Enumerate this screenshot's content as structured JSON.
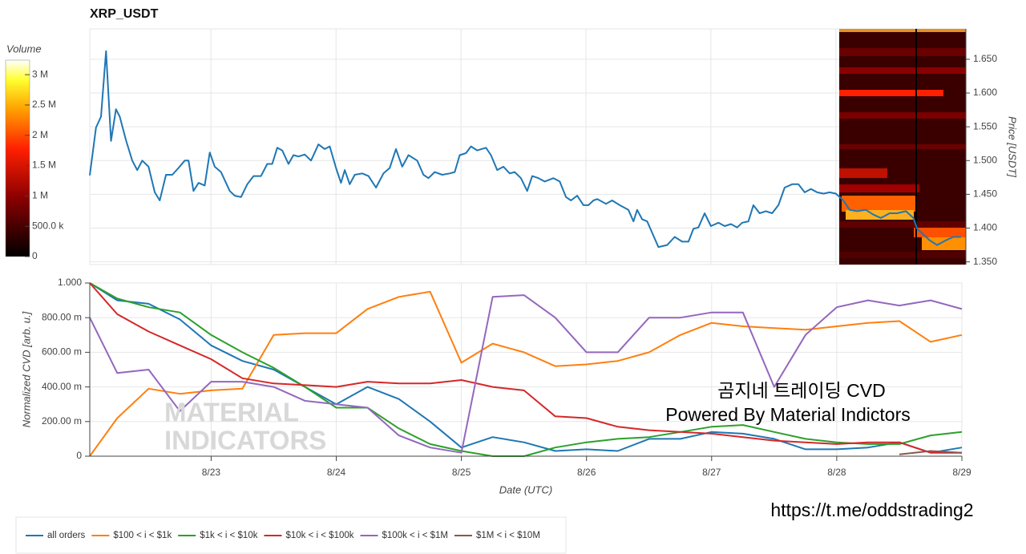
{
  "chart_data": [
    {
      "type": "line",
      "title": "XRP_USDT",
      "y2_label": "Price [USDT]",
      "color": "#1f77b4",
      "xlim": [
        22.03,
        29.04
      ],
      "y2lim": [
        1.346,
        1.695
      ],
      "y2ticks": [
        {
          "value": 1.35,
          "label": "1.350"
        },
        {
          "value": 1.4,
          "label": "1.400"
        },
        {
          "value": 1.45,
          "label": "1.450"
        },
        {
          "value": 1.5,
          "label": "1.500"
        },
        {
          "value": 1.55,
          "label": "1.550"
        },
        {
          "value": 1.6,
          "label": "1.600"
        },
        {
          "value": 1.65,
          "label": "1.650"
        }
      ],
      "grid": true,
      "colorbar": {
        "label": "Volume",
        "lim": [
          0,
          3240000
        ],
        "ticks": [
          0,
          {
            "value": 500000,
            "label": "500.0 k"
          },
          {
            "value": 1000000,
            "label": "1 M"
          },
          {
            "value": 1500000,
            "label": "1.5 M"
          },
          {
            "value": 2000000,
            "label": "2 M"
          },
          {
            "value": 2500000,
            "label": "2.5 M"
          },
          {
            "value": 3000000,
            "label": "3 M"
          }
        ]
      },
      "x": [
        22.03,
        22.08,
        22.12,
        22.16,
        22.2,
        22.24,
        22.27,
        22.32,
        22.37,
        22.41,
        22.45,
        22.5,
        22.55,
        22.59,
        22.64,
        22.69,
        22.74,
        22.79,
        22.82,
        22.86,
        22.9,
        22.95,
        22.99,
        23.03,
        23.08,
        23.15,
        23.19,
        23.24,
        23.29,
        23.34,
        23.4,
        23.45,
        23.49,
        23.53,
        23.57,
        23.62,
        23.66,
        23.7,
        23.75,
        23.8,
        23.86,
        23.91,
        23.95,
        24.0,
        24.04,
        24.07,
        24.11,
        24.15,
        24.21,
        24.26,
        24.32,
        24.38,
        24.43,
        24.48,
        24.53,
        24.58,
        24.65,
        24.7,
        24.74,
        24.79,
        24.85,
        24.91,
        24.95,
        24.99,
        25.04,
        25.08,
        25.13,
        25.2,
        25.24,
        25.29,
        25.34,
        25.39,
        25.43,
        25.48,
        25.53,
        25.57,
        25.62,
        25.67,
        25.74,
        25.79,
        25.84,
        25.88,
        25.93,
        25.98,
        26.02,
        26.06,
        26.09,
        26.16,
        26.21,
        26.27,
        26.34,
        26.38,
        26.41,
        26.45,
        26.49,
        26.58,
        26.65,
        26.71,
        26.77,
        26.82,
        26.86,
        26.9,
        26.95,
        27.0,
        27.06,
        27.11,
        27.16,
        27.21,
        27.25,
        27.3,
        27.34,
        27.39,
        27.44,
        27.49,
        27.54,
        27.59,
        27.65,
        27.7,
        27.75,
        27.8,
        27.85,
        27.9,
        27.95,
        28.0,
        28.06,
        28.11,
        28.17,
        28.24,
        28.3,
        28.36,
        28.43,
        28.49,
        28.56,
        28.62,
        28.65,
        28.75,
        28.81,
        28.88,
        28.94,
        29.0
      ],
      "values": [
        1.478,
        1.549,
        1.565,
        1.662,
        1.529,
        1.576,
        1.565,
        1.53,
        1.5,
        1.486,
        1.5,
        1.491,
        1.453,
        1.441,
        1.479,
        1.479,
        1.489,
        1.5,
        1.5,
        1.455,
        1.467,
        1.463,
        1.512,
        1.491,
        1.483,
        1.455,
        1.448,
        1.446,
        1.465,
        1.477,
        1.477,
        1.495,
        1.495,
        1.519,
        1.515,
        1.495,
        1.508,
        1.506,
        1.509,
        1.5,
        1.524,
        1.517,
        1.521,
        1.489,
        1.467,
        1.486,
        1.465,
        1.479,
        1.481,
        1.477,
        1.46,
        1.481,
        1.489,
        1.517,
        1.491,
        1.508,
        1.5,
        1.479,
        1.474,
        1.483,
        1.479,
        1.481,
        1.483,
        1.508,
        1.511,
        1.521,
        1.515,
        1.519,
        1.508,
        1.486,
        1.491,
        1.481,
        1.483,
        1.474,
        1.455,
        1.477,
        1.474,
        1.469,
        1.474,
        1.469,
        1.446,
        1.441,
        1.448,
        1.434,
        1.434,
        1.441,
        1.443,
        1.436,
        1.441,
        1.434,
        1.427,
        1.41,
        1.427,
        1.413,
        1.41,
        1.372,
        1.375,
        1.387,
        1.38,
        1.38,
        1.399,
        1.401,
        1.422,
        1.403,
        1.408,
        1.403,
        1.406,
        1.401,
        1.408,
        1.41,
        1.434,
        1.422,
        1.425,
        1.422,
        1.434,
        1.46,
        1.465,
        1.465,
        1.453,
        1.458,
        1.453,
        1.451,
        1.453,
        1.451,
        1.441,
        1.427,
        1.425,
        1.427,
        1.42,
        1.415,
        1.422,
        1.422,
        1.425,
        1.415,
        1.399,
        1.382,
        1.375,
        1.382,
        1.387,
        1.387
      ]
    },
    {
      "type": "line",
      "x_label": "Date (UTC)",
      "y_label": "Normalized CVD [arb. u.]",
      "xlim": [
        22.03,
        29.0
      ],
      "ylim": [
        0,
        1
      ],
      "xticks": [
        {
          "value": 23,
          "label": "8/23"
        },
        {
          "value": 24,
          "label": "8/24"
        },
        {
          "value": 25,
          "label": "8/25"
        },
        {
          "value": 26,
          "label": "8/26"
        },
        {
          "value": 27,
          "label": "8/27"
        },
        {
          "value": 28,
          "label": "8/28"
        },
        {
          "value": 29,
          "label": "8/29"
        }
      ],
      "yticks": [
        0,
        {
          "value": 0.2,
          "label": "200.00 m"
        },
        {
          "value": 0.4,
          "label": "400.00 m"
        },
        {
          "value": 0.6,
          "label": "600.00 m"
        },
        {
          "value": 0.8,
          "label": "800.00 m"
        },
        {
          "value": 1,
          "label": "1.000"
        }
      ],
      "grid": true,
      "legend": "below",
      "annotations": [
        "곰지네 트레이딩 CVD",
        "Powered By Material Indictors",
        "https://t.me/oddstrading2",
        "MATERIAL",
        "INDICATORS"
      ],
      "x": [
        22.03,
        22.25,
        22.5,
        22.75,
        23,
        23.25,
        23.5,
        23.75,
        24,
        24.25,
        24.5,
        24.75,
        25,
        25.25,
        25.5,
        25.75,
        26,
        26.25,
        26.5,
        26.75,
        27,
        27.25,
        27.5,
        27.75,
        28,
        28.25,
        28.5,
        28.75,
        29
      ],
      "series": [
        {
          "name": "all orders",
          "color": "#1f77b4",
          "values": [
            1.0,
            0.9,
            0.88,
            0.79,
            0.64,
            0.55,
            0.5,
            0.4,
            0.3,
            0.4,
            0.33,
            0.2,
            0.05,
            0.11,
            0.08,
            0.03,
            0.04,
            0.03,
            0.1,
            0.1,
            0.14,
            0.13,
            0.1,
            0.04,
            0.04,
            0.05,
            0.08,
            0.02,
            0.05
          ]
        },
        {
          "name": "$100 < i < $1k",
          "color": "#ff7f0e",
          "values": [
            0,
            0.22,
            0.39,
            0.36,
            0.38,
            0.39,
            0.7,
            0.71,
            0.71,
            0.85,
            0.92,
            0.95,
            0.54,
            0.65,
            0.6,
            0.52,
            0.53,
            0.55,
            0.6,
            0.7,
            0.77,
            0.75,
            0.74,
            0.73,
            0.75,
            0.77,
            0.78,
            0.66,
            0.7
          ]
        },
        {
          "name": "$1k < i < $10k",
          "color": "#2ca02c",
          "values": [
            1.0,
            0.91,
            0.86,
            0.83,
            0.7,
            0.6,
            0.51,
            0.4,
            0.28,
            0.28,
            0.16,
            0.07,
            0.03,
            0,
            0,
            0.05,
            0.08,
            0.1,
            0.11,
            0.14,
            0.17,
            0.18,
            0.14,
            0.1,
            0.08,
            0.07,
            0.07,
            0.12,
            0.14
          ]
        },
        {
          "name": "$10k < i < $100k",
          "color": "#d62728",
          "values": [
            1.0,
            0.82,
            0.72,
            0.64,
            0.56,
            0.45,
            0.42,
            0.41,
            0.4,
            0.43,
            0.42,
            0.42,
            0.44,
            0.4,
            0.38,
            0.23,
            0.22,
            0.17,
            0.15,
            0.14,
            0.13,
            0.11,
            0.09,
            0.08,
            0.07,
            0.08,
            0.08,
            0.02,
            0.02
          ]
        },
        {
          "name": "$100k < i < $1M",
          "color": "#9467bd",
          "values": [
            0.8,
            0.48,
            0.5,
            0.26,
            0.43,
            0.43,
            0.4,
            0.32,
            0.3,
            0.28,
            0.12,
            0.05,
            0.02,
            0.92,
            0.93,
            0.8,
            0.6,
            0.6,
            0.8,
            0.8,
            0.83,
            0.83,
            0.4,
            0.7,
            0.86,
            0.9,
            0.87,
            0.9,
            0.85
          ]
        },
        {
          "name": "$1M < i < $10M",
          "color": "#8c564b",
          "values": [
            null,
            null,
            null,
            null,
            null,
            null,
            null,
            null,
            null,
            null,
            null,
            null,
            null,
            null,
            null,
            null,
            null,
            null,
            null,
            null,
            null,
            null,
            null,
            null,
            null,
            null,
            0.01,
            0.03,
            0.02
          ]
        }
      ]
    }
  ]
}
